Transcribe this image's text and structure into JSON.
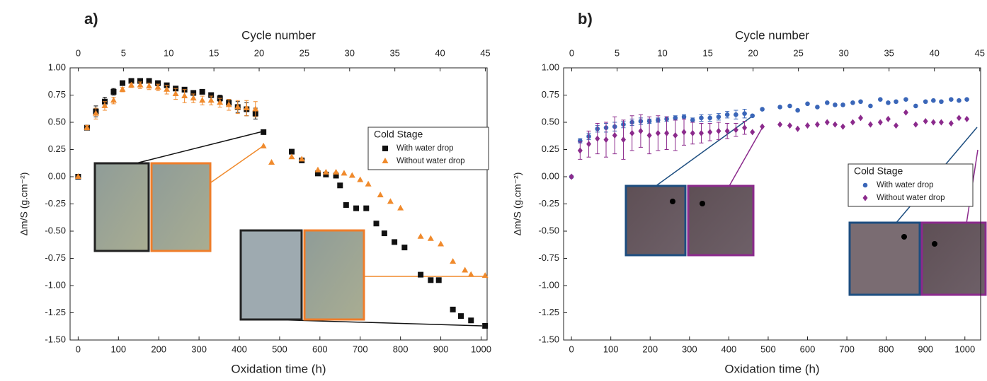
{
  "chart_data": [
    {
      "type": "scatter",
      "panel_label": "a)",
      "title": "Cycle number",
      "x_label": "Oxidation time (h)",
      "y_label": "Δm/S (g.cm⁻²)",
      "xlim": [
        -20,
        1015
      ],
      "xticks": [
        0,
        100,
        200,
        300,
        400,
        500,
        600,
        700,
        800,
        900,
        1000
      ],
      "x2lim": [
        -0.9,
        45.2
      ],
      "x2ticks": [
        0,
        5,
        10,
        15,
        20,
        25,
        30,
        35,
        40,
        45
      ],
      "ylim": [
        -1.5,
        1.0
      ],
      "yticks": [
        {
          "value": -1.5,
          "label": "-1.50"
        },
        {
          "value": -1.25,
          "label": "-1.25"
        },
        {
          "value": -1.0,
          "label": "-1.00"
        },
        {
          "value": -0.75,
          "label": "-0.75"
        },
        {
          "value": -0.5,
          "label": "-0.50"
        },
        {
          "value": -0.25,
          "label": "-0.25"
        },
        {
          "value": 0,
          "label": "0.00"
        },
        {
          "value": 0.25,
          "label": "0.25"
        },
        {
          "value": 0.5,
          "label": "0.50"
        },
        {
          "value": 0.75,
          "label": "0.75"
        },
        {
          "value": 1.0,
          "label": "1.00"
        }
      ],
      "legend_title": "Cold Stage",
      "legend_position": "upper right",
      "series": [
        {
          "name": "With water drop",
          "color": "#111111",
          "marker": "square",
          "x": [
            0,
            22,
            44,
            66,
            88,
            110,
            132,
            154,
            176,
            198,
            220,
            242,
            264,
            286,
            308,
            330,
            352,
            374,
            396,
            418,
            440,
            460,
            530,
            555,
            595,
            615,
            640,
            650,
            665,
            690,
            715,
            740,
            760,
            785,
            810,
            850,
            875,
            895,
            930,
            950,
            975,
            1010
          ],
          "values": [
            0,
            0.45,
            0.6,
            0.69,
            0.78,
            0.86,
            0.88,
            0.88,
            0.88,
            0.86,
            0.84,
            0.81,
            0.8,
            0.77,
            0.78,
            0.75,
            0.72,
            0.68,
            0.64,
            0.62,
            0.58,
            0.41,
            0.23,
            0.15,
            0.03,
            0.02,
            0.01,
            -0.08,
            -0.26,
            -0.29,
            -0.29,
            -0.43,
            -0.52,
            -0.6,
            -0.65,
            -0.9,
            -0.95,
            -0.95,
            -1.22,
            -1.28,
            -1.32,
            -1.37
          ],
          "errors": [
            null,
            0.02,
            0.05,
            0.04,
            0.03,
            0.02,
            0.02,
            0.02,
            0.02,
            0.02,
            0.02,
            0.02,
            0.02,
            0.02,
            0.02,
            0.02,
            0.03,
            0.03,
            0.05,
            0.06,
            0.05,
            null,
            null,
            null,
            null,
            null,
            null,
            null,
            null,
            null,
            null,
            null,
            null,
            null,
            null,
            null,
            null,
            null,
            null,
            null,
            null,
            null
          ]
        },
        {
          "name": "Without water drop",
          "color": "#f08a2c",
          "marker": "triangle",
          "x": [
            0,
            22,
            44,
            66,
            88,
            110,
            132,
            154,
            176,
            198,
            220,
            242,
            264,
            286,
            308,
            330,
            352,
            374,
            396,
            418,
            440,
            460,
            480,
            530,
            555,
            595,
            615,
            640,
            660,
            680,
            700,
            720,
            750,
            775,
            800,
            850,
            875,
            900,
            930,
            960,
            975,
            1010
          ],
          "values": [
            0,
            0.45,
            0.58,
            0.65,
            0.7,
            0.8,
            0.84,
            0.84,
            0.83,
            0.82,
            0.8,
            0.76,
            0.74,
            0.72,
            0.7,
            0.7,
            0.68,
            0.66,
            0.64,
            0.63,
            0.62,
            0.28,
            0.13,
            0.18,
            0.16,
            0.06,
            0.04,
            0.04,
            0.03,
            0.01,
            -0.03,
            -0.07,
            -0.17,
            -0.23,
            -0.29,
            -0.55,
            -0.57,
            -0.62,
            -0.78,
            -0.86,
            -0.9,
            -0.91
          ],
          "errors": [
            null,
            0.02,
            0.05,
            0.04,
            0.03,
            0.02,
            0.02,
            0.03,
            0.03,
            0.03,
            0.04,
            0.05,
            0.06,
            0.04,
            0.04,
            0.04,
            0.04,
            0.05,
            0.06,
            0.07,
            0.07,
            null,
            null,
            null,
            null,
            null,
            null,
            null,
            null,
            null,
            null,
            null,
            null,
            null,
            null,
            null,
            null,
            null,
            null,
            null,
            null,
            null
          ]
        }
      ]
    },
    {
      "type": "scatter",
      "panel_label": "b)",
      "title": "Cycle number",
      "x_label": "Oxidation time (h)",
      "y_label": "Δm/S (g.cm⁻²)",
      "xlim": [
        -20,
        1040
      ],
      "xticks": [
        0,
        100,
        200,
        300,
        400,
        500,
        600,
        700,
        800,
        900,
        1000
      ],
      "x2lim": [
        -0.9,
        45.1
      ],
      "x2ticks": [
        0,
        5,
        10,
        15,
        20,
        25,
        30,
        35,
        40,
        45
      ],
      "ylim": [
        -1.5,
        1.0
      ],
      "yticks": [
        {
          "value": -1.5,
          "label": "-1.50"
        },
        {
          "value": -1.25,
          "label": "-1.25"
        },
        {
          "value": -1.0,
          "label": "-1.00"
        },
        {
          "value": -0.75,
          "label": "-0.75"
        },
        {
          "value": -0.5,
          "label": "-0.50"
        },
        {
          "value": -0.25,
          "label": "-0.25"
        },
        {
          "value": 0,
          "label": "0.00"
        },
        {
          "value": 0.25,
          "label": "0.25"
        },
        {
          "value": 0.5,
          "label": "0.50"
        },
        {
          "value": 0.75,
          "label": "0.75"
        },
        {
          "value": 1.0,
          "label": "1.00"
        }
      ],
      "legend_title": "Cold Stage",
      "legend_position": "center right",
      "series": [
        {
          "name": "With water drop",
          "color": "#3a66b8",
          "marker": "circle",
          "x": [
            0,
            22,
            44,
            66,
            88,
            110,
            132,
            154,
            176,
            198,
            220,
            242,
            264,
            286,
            308,
            330,
            352,
            374,
            396,
            418,
            440,
            460,
            485,
            530,
            555,
            575,
            600,
            625,
            650,
            670,
            690,
            715,
            735,
            760,
            785,
            805,
            825,
            850,
            875,
            900,
            920,
            940,
            965,
            985,
            1005
          ],
          "values": [
            0,
            0.33,
            0.37,
            0.44,
            0.45,
            0.46,
            0.48,
            0.5,
            0.51,
            0.51,
            0.52,
            0.53,
            0.54,
            0.55,
            0.52,
            0.54,
            0.54,
            0.55,
            0.57,
            0.57,
            0.58,
            0.56,
            0.62,
            0.64,
            0.65,
            0.61,
            0.67,
            0.64,
            0.68,
            0.66,
            0.66,
            0.68,
            0.69,
            0.65,
            0.71,
            0.68,
            0.69,
            0.71,
            0.65,
            0.69,
            0.7,
            0.69,
            0.71,
            0.7,
            0.71
          ],
          "errors": [
            null,
            0.02,
            0.03,
            0.03,
            0.04,
            0.04,
            0.03,
            0.03,
            0.03,
            0.02,
            0.02,
            0.02,
            0.02,
            0.02,
            0.02,
            0.03,
            0.03,
            0.03,
            0.03,
            0.04,
            0.04,
            null,
            null,
            null,
            null,
            null,
            null,
            null,
            null,
            null,
            null,
            null,
            null,
            null,
            null,
            null,
            null,
            null,
            null,
            null,
            null,
            null,
            null,
            null,
            null
          ]
        },
        {
          "name": "Without water drop",
          "color": "#8b2a8c",
          "marker": "diamond",
          "x": [
            0,
            22,
            44,
            66,
            88,
            110,
            132,
            154,
            176,
            198,
            220,
            242,
            264,
            286,
            308,
            330,
            352,
            374,
            396,
            418,
            440,
            460,
            485,
            530,
            555,
            575,
            600,
            625,
            650,
            670,
            690,
            715,
            735,
            760,
            785,
            805,
            825,
            850,
            875,
            900,
            920,
            940,
            965,
            985,
            1005
          ],
          "values": [
            0,
            0.24,
            0.3,
            0.35,
            0.34,
            0.38,
            0.34,
            0.4,
            0.42,
            0.38,
            0.4,
            0.4,
            0.38,
            0.41,
            0.4,
            0.4,
            0.41,
            0.42,
            0.42,
            0.43,
            0.45,
            0.41,
            0.46,
            0.48,
            0.47,
            0.44,
            0.47,
            0.48,
            0.5,
            0.48,
            0.46,
            0.5,
            0.54,
            0.48,
            0.5,
            0.53,
            0.47,
            0.59,
            0.48,
            0.51,
            0.5,
            0.5,
            0.49,
            0.54,
            0.53
          ],
          "errors": [
            null,
            0.08,
            0.12,
            0.14,
            0.16,
            0.17,
            0.18,
            0.16,
            0.15,
            0.17,
            0.16,
            0.15,
            0.14,
            0.12,
            0.1,
            0.09,
            0.08,
            0.08,
            0.07,
            0.06,
            0.06,
            null,
            null,
            null,
            null,
            null,
            null,
            null,
            null,
            null,
            null,
            null,
            null,
            null,
            null,
            null,
            null,
            null,
            null,
            null,
            null,
            null,
            null,
            null,
            null
          ]
        }
      ]
    }
  ]
}
